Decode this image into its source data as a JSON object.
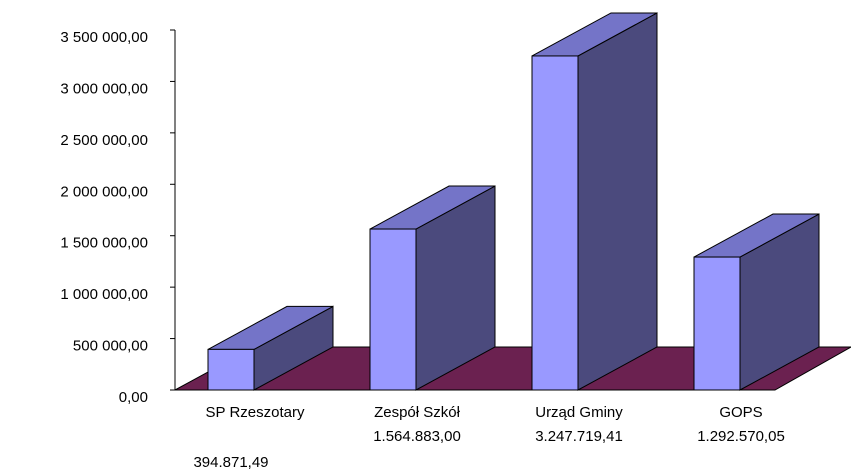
{
  "chart_data": {
    "type": "bar3d",
    "categories": [
      "SP Rzeszotary",
      "Zespół Szkół",
      "Urząd Gminy",
      "GOPS"
    ],
    "values": [
      394871.49,
      1564883.0,
      3247719.41,
      1292570.05
    ],
    "value_labels": [
      "394.871,49",
      "1.564.883,00",
      "3.247.719,41",
      "1.292.570,05"
    ],
    "color": "#9999ff",
    "ylim": [
      0,
      3500000
    ],
    "yticks": [
      {
        "value": 0,
        "label": "0,00"
      },
      {
        "value": 500000,
        "label": "500 000,00"
      },
      {
        "value": 1000000,
        "label": "1 000 000,00"
      },
      {
        "value": 1500000,
        "label": "1 500 000,00"
      },
      {
        "value": 2000000,
        "label": "2 000 000,00"
      },
      {
        "value": 2500000,
        "label": "2 500 000,00"
      },
      {
        "value": 3000000,
        "label": "3 000 000,00"
      },
      {
        "value": 3500000,
        "label": "3 500 000,00"
      }
    ]
  }
}
